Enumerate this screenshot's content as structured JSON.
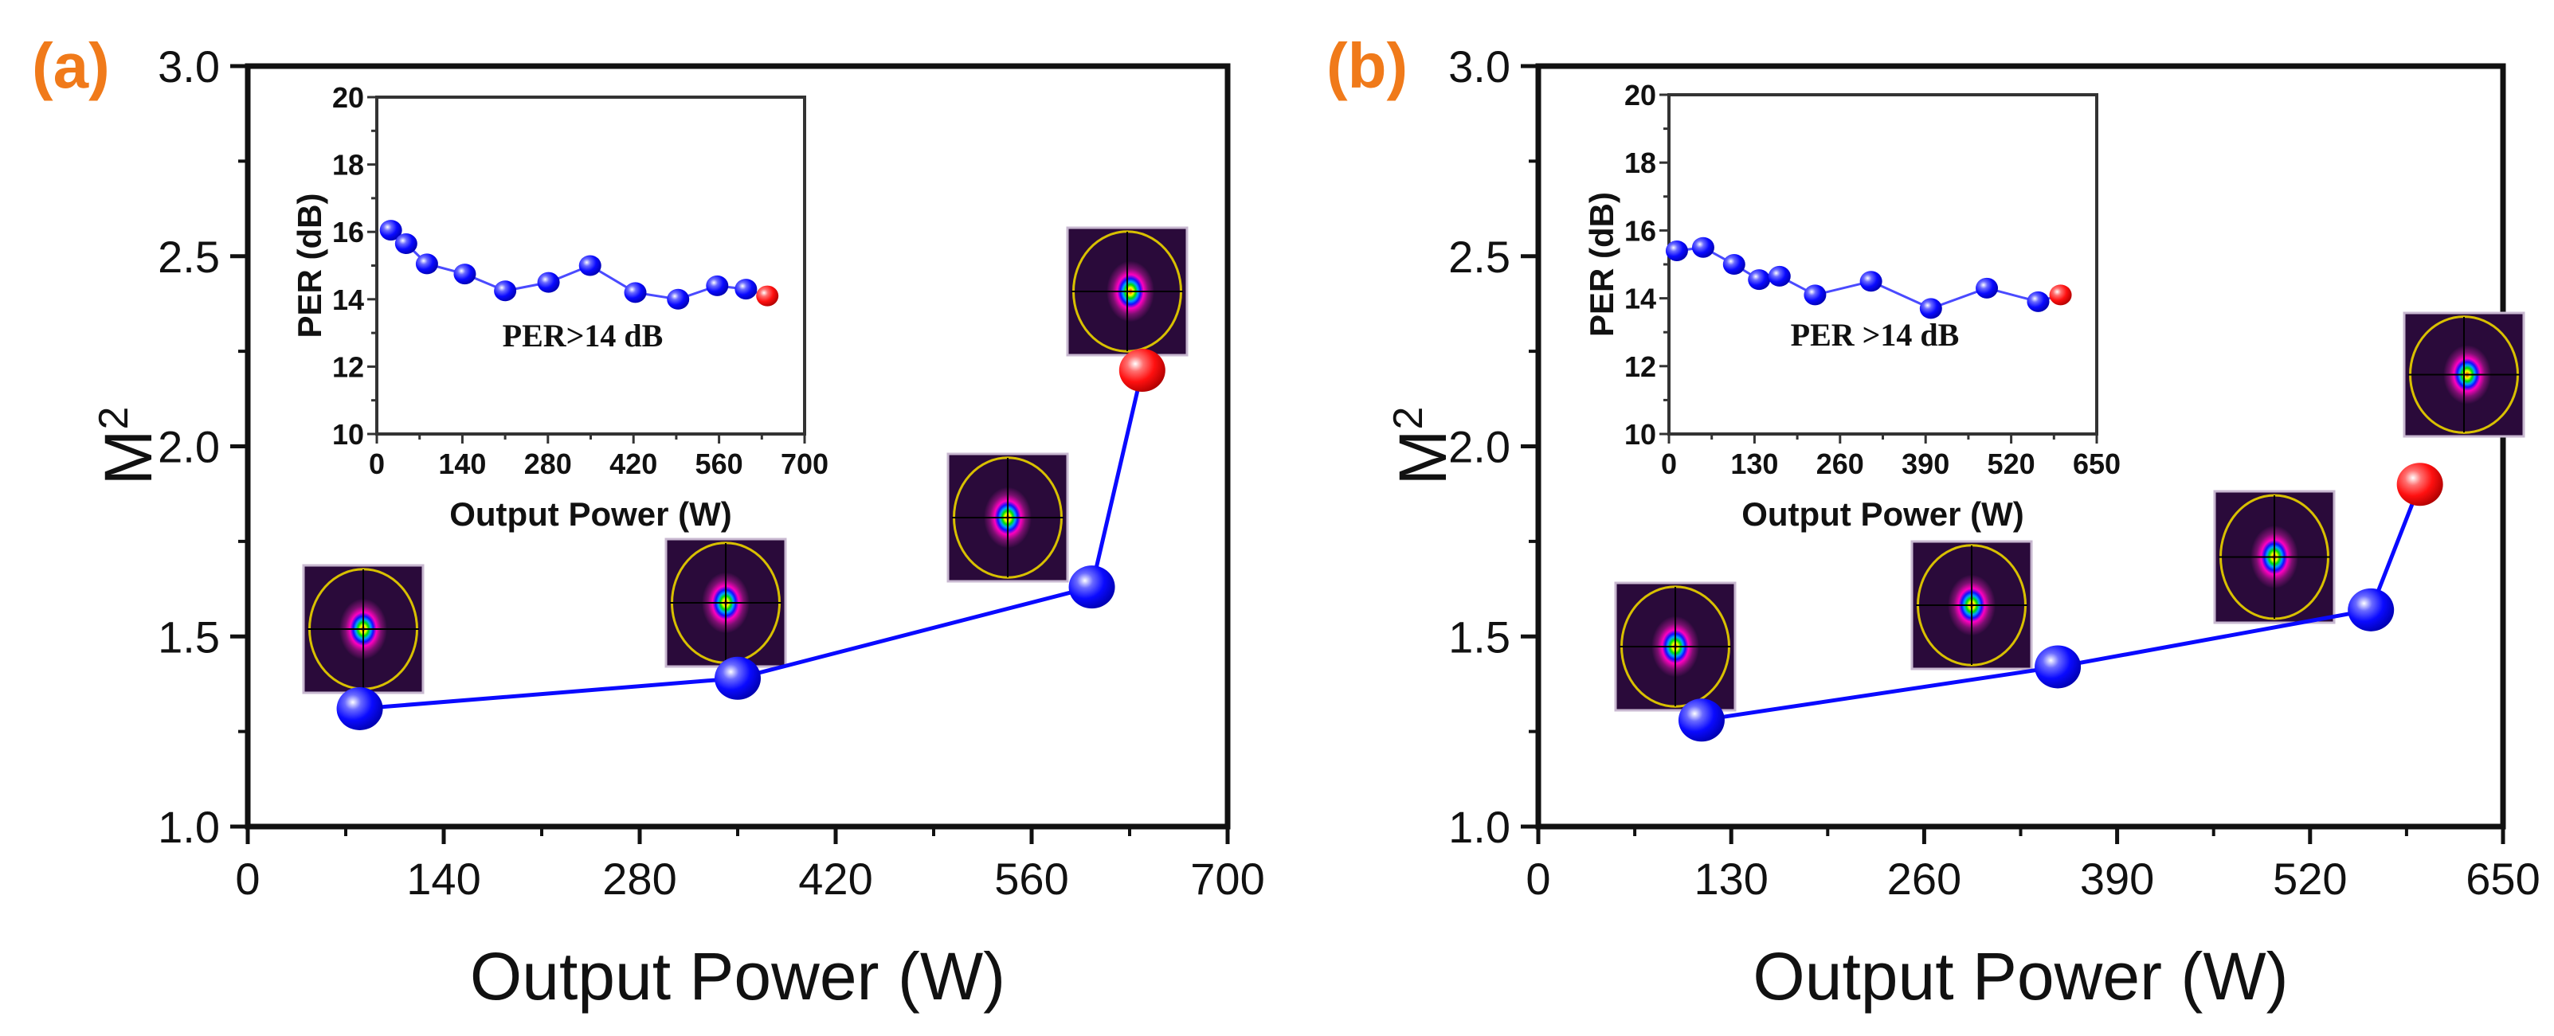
{
  "colors": {
    "series": "#0a0aff",
    "highlight": "#ff1010",
    "panel_label": "#f07a1a",
    "beam_bg": "#2a0a3a"
  },
  "chart_data": [
    {
      "type": "line",
      "panel_label": "(a)",
      "title": "",
      "xlabel": "Output Power (W)",
      "ylabel": "M",
      "ylabel_sup": "2",
      "xlim": [
        0,
        700
      ],
      "ylim": [
        1.0,
        3.0
      ],
      "xticks": [
        "0",
        "140",
        "280",
        "420",
        "560",
        "700"
      ],
      "yticks": [
        "1.0",
        "1.5",
        "2.0",
        "2.5",
        "3.0"
      ],
      "series": [
        {
          "name": "M2",
          "x": [
            80,
            350,
            603,
            639
          ],
          "y": [
            1.31,
            1.39,
            1.63,
            2.2
          ],
          "highlight_last": true
        }
      ],
      "beam_profiles_at_points": 4,
      "inset": {
        "type": "line",
        "xlabel": "Output Power (W)",
        "ylabel": "PER (dB)",
        "xlim": [
          0,
          700
        ],
        "ylim": [
          10,
          20
        ],
        "xticks": [
          "0",
          "140",
          "280",
          "420",
          "560",
          "700"
        ],
        "yticks": [
          "10",
          "12",
          "14",
          "16",
          "18",
          "20"
        ],
        "annotation": "PER>14 dB",
        "series": [
          {
            "name": "PER",
            "x": [
              23,
              48,
              82,
              144,
              210,
              281,
              349,
              423,
              493,
              557,
              604,
              639
            ],
            "y": [
              16.05,
              15.65,
              15.05,
              14.75,
              14.25,
              14.5,
              15.0,
              14.2,
              14.0,
              14.4,
              14.3,
              14.1
            ],
            "highlight_last": true
          }
        ]
      }
    },
    {
      "type": "line",
      "panel_label": "(b)",
      "title": "",
      "xlabel": "Output Power (W)",
      "ylabel": "M",
      "ylabel_sup": "2",
      "xlim": [
        0,
        650
      ],
      "ylim": [
        1.0,
        3.0
      ],
      "xticks": [
        "0",
        "130",
        "260",
        "390",
        "520",
        "650"
      ],
      "yticks": [
        "1.0",
        "1.5",
        "2.0",
        "2.5",
        "3.0"
      ],
      "series": [
        {
          "name": "M2",
          "x": [
            110,
            350,
            561,
            594
          ],
          "y": [
            1.28,
            1.42,
            1.57,
            1.9
          ],
          "highlight_last": true
        }
      ],
      "beam_profiles_at_points": 4,
      "inset": {
        "type": "line",
        "xlabel": "Output Power (W)",
        "ylabel": "PER (dB)",
        "xlim": [
          0,
          650
        ],
        "ylim": [
          10,
          20
        ],
        "xticks": [
          "0",
          "130",
          "260",
          "390",
          "520",
          "650"
        ],
        "yticks": [
          "10",
          "12",
          "14",
          "16",
          "18",
          "20"
        ],
        "annotation": "PER >14 dB",
        "series": [
          {
            "name": "PER",
            "x": [
              12,
              52,
              99,
              137,
              168,
              222,
              307,
              398,
              483,
              561,
              595
            ],
            "y": [
              15.4,
              15.5,
              15.0,
              14.55,
              14.65,
              14.1,
              14.5,
              13.7,
              14.3,
              13.9,
              14.1
            ],
            "highlight_last": true
          }
        ]
      }
    }
  ]
}
